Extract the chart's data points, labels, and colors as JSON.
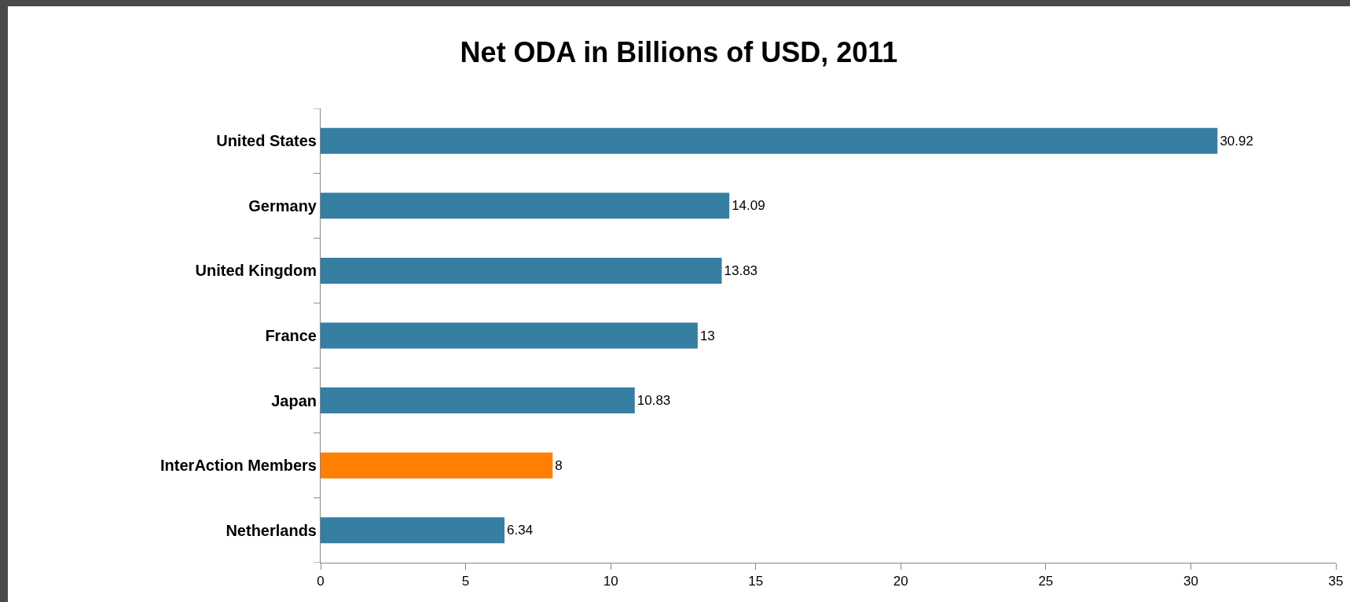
{
  "chart_data": {
    "type": "bar",
    "orientation": "horizontal",
    "title": "Net ODA in Billions of USD, 2011",
    "categories": [
      "United States",
      "Germany",
      "United Kingdom",
      "France",
      "Japan",
      "InterAction Members",
      "Netherlands"
    ],
    "values": [
      30.92,
      14.09,
      13.83,
      13,
      10.83,
      8,
      6.34
    ],
    "colors": [
      "#367fa3",
      "#367fa3",
      "#367fa3",
      "#367fa3",
      "#367fa3",
      "#ff7f00",
      "#367fa3"
    ],
    "xlim": [
      0,
      35
    ],
    "xticks": [
      0,
      5,
      10,
      15,
      20,
      25,
      30,
      35
    ],
    "grid": false,
    "data_labels": true,
    "legend": false
  }
}
